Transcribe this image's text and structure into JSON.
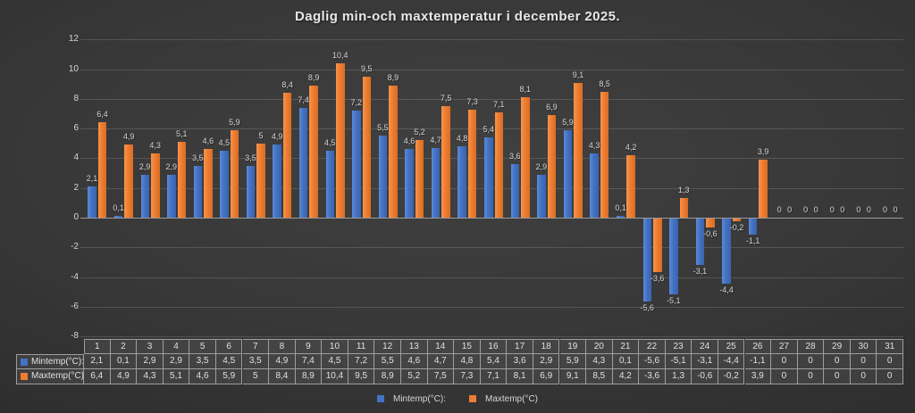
{
  "title": "Daglig min-och maxtemperatur i december 2025.",
  "legend": {
    "min_label": "Mintemp(°C):",
    "max_label": "Maxtemp(°C)"
  },
  "table": {
    "row_labels": [
      "Mintemp(°C):",
      "Maxtemp(°C)"
    ]
  },
  "colors": {
    "min_series": "#4472C4",
    "max_series": "#ED7D31",
    "background": "#333333",
    "gridline": "#5a5a5a",
    "zero_line": "#9a9a9a",
    "text": "#d6d6d6"
  },
  "chart_data": {
    "type": "bar",
    "title": "Daglig min-och maxtemperatur i december 2025.",
    "categories": [
      "1",
      "2",
      "3",
      "4",
      "5",
      "6",
      "7",
      "8",
      "9",
      "10",
      "11",
      "12",
      "13",
      "14",
      "15",
      "16",
      "17",
      "18",
      "19",
      "20",
      "21",
      "22",
      "23",
      "24",
      "25",
      "26",
      "27",
      "28",
      "29",
      "30",
      "31"
    ],
    "series": [
      {
        "name": "Mintemp(°C):",
        "color": "#4472C4",
        "values": [
          2.1,
          0.1,
          2.9,
          2.9,
          3.5,
          4.5,
          3.5,
          4.9,
          7.4,
          4.5,
          7.2,
          5.5,
          4.6,
          4.7,
          4.8,
          5.4,
          3.6,
          2.9,
          5.9,
          4.3,
          0.1,
          -5.6,
          -5.1,
          -3.1,
          -4.4,
          -1.1,
          0,
          0,
          0,
          0,
          0
        ]
      },
      {
        "name": "Maxtemp(°C)",
        "color": "#ED7D31",
        "values": [
          6.4,
          4.9,
          4.3,
          5.1,
          4.6,
          5.9,
          5,
          8.4,
          8.9,
          10.4,
          9.5,
          8.9,
          5.2,
          7.5,
          7.3,
          7.1,
          8.1,
          6.9,
          9.1,
          8.5,
          4.2,
          -3.6,
          1.3,
          -0.6,
          -0.2,
          3.9,
          0,
          0,
          0,
          0,
          0
        ]
      }
    ],
    "xlabel": "",
    "ylabel": "",
    "ylim": [
      -8,
      12
    ],
    "yticks": [
      -8,
      -6,
      -4,
      -2,
      0,
      2,
      4,
      6,
      8,
      10,
      12
    ],
    "grid": true,
    "legend_position": "bottom",
    "data_labels": true,
    "data_table": true,
    "decimal_separator": ","
  }
}
